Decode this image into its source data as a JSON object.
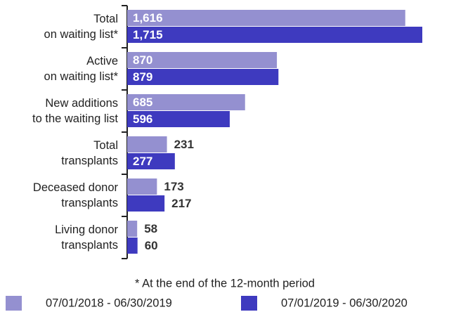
{
  "chart_data": {
    "type": "bar",
    "orientation": "horizontal",
    "categories": [
      "Total\non waiting list*",
      "Active\non waiting list*",
      "New additions\nto the waiting list",
      "Total\ntransplants",
      "Deceased donor\ntransplants",
      "Living donor\ntransplants"
    ],
    "series": [
      {
        "name": "07/01/2018 - 06/30/2019",
        "color": "#9490d0",
        "values": [
          1616,
          870,
          685,
          231,
          173,
          58
        ],
        "value_labels": [
          "1,616",
          "870",
          "685",
          "231",
          "173",
          "58"
        ]
      },
      {
        "name": "07/01/2019 - 06/30/2020",
        "color": "#3e3abf",
        "values": [
          1715,
          879,
          596,
          277,
          217,
          60
        ],
        "value_labels": [
          "1,715",
          "879",
          "596",
          "277",
          "217",
          "60"
        ]
      }
    ],
    "footnote": "* At the end of the 12-month period"
  }
}
